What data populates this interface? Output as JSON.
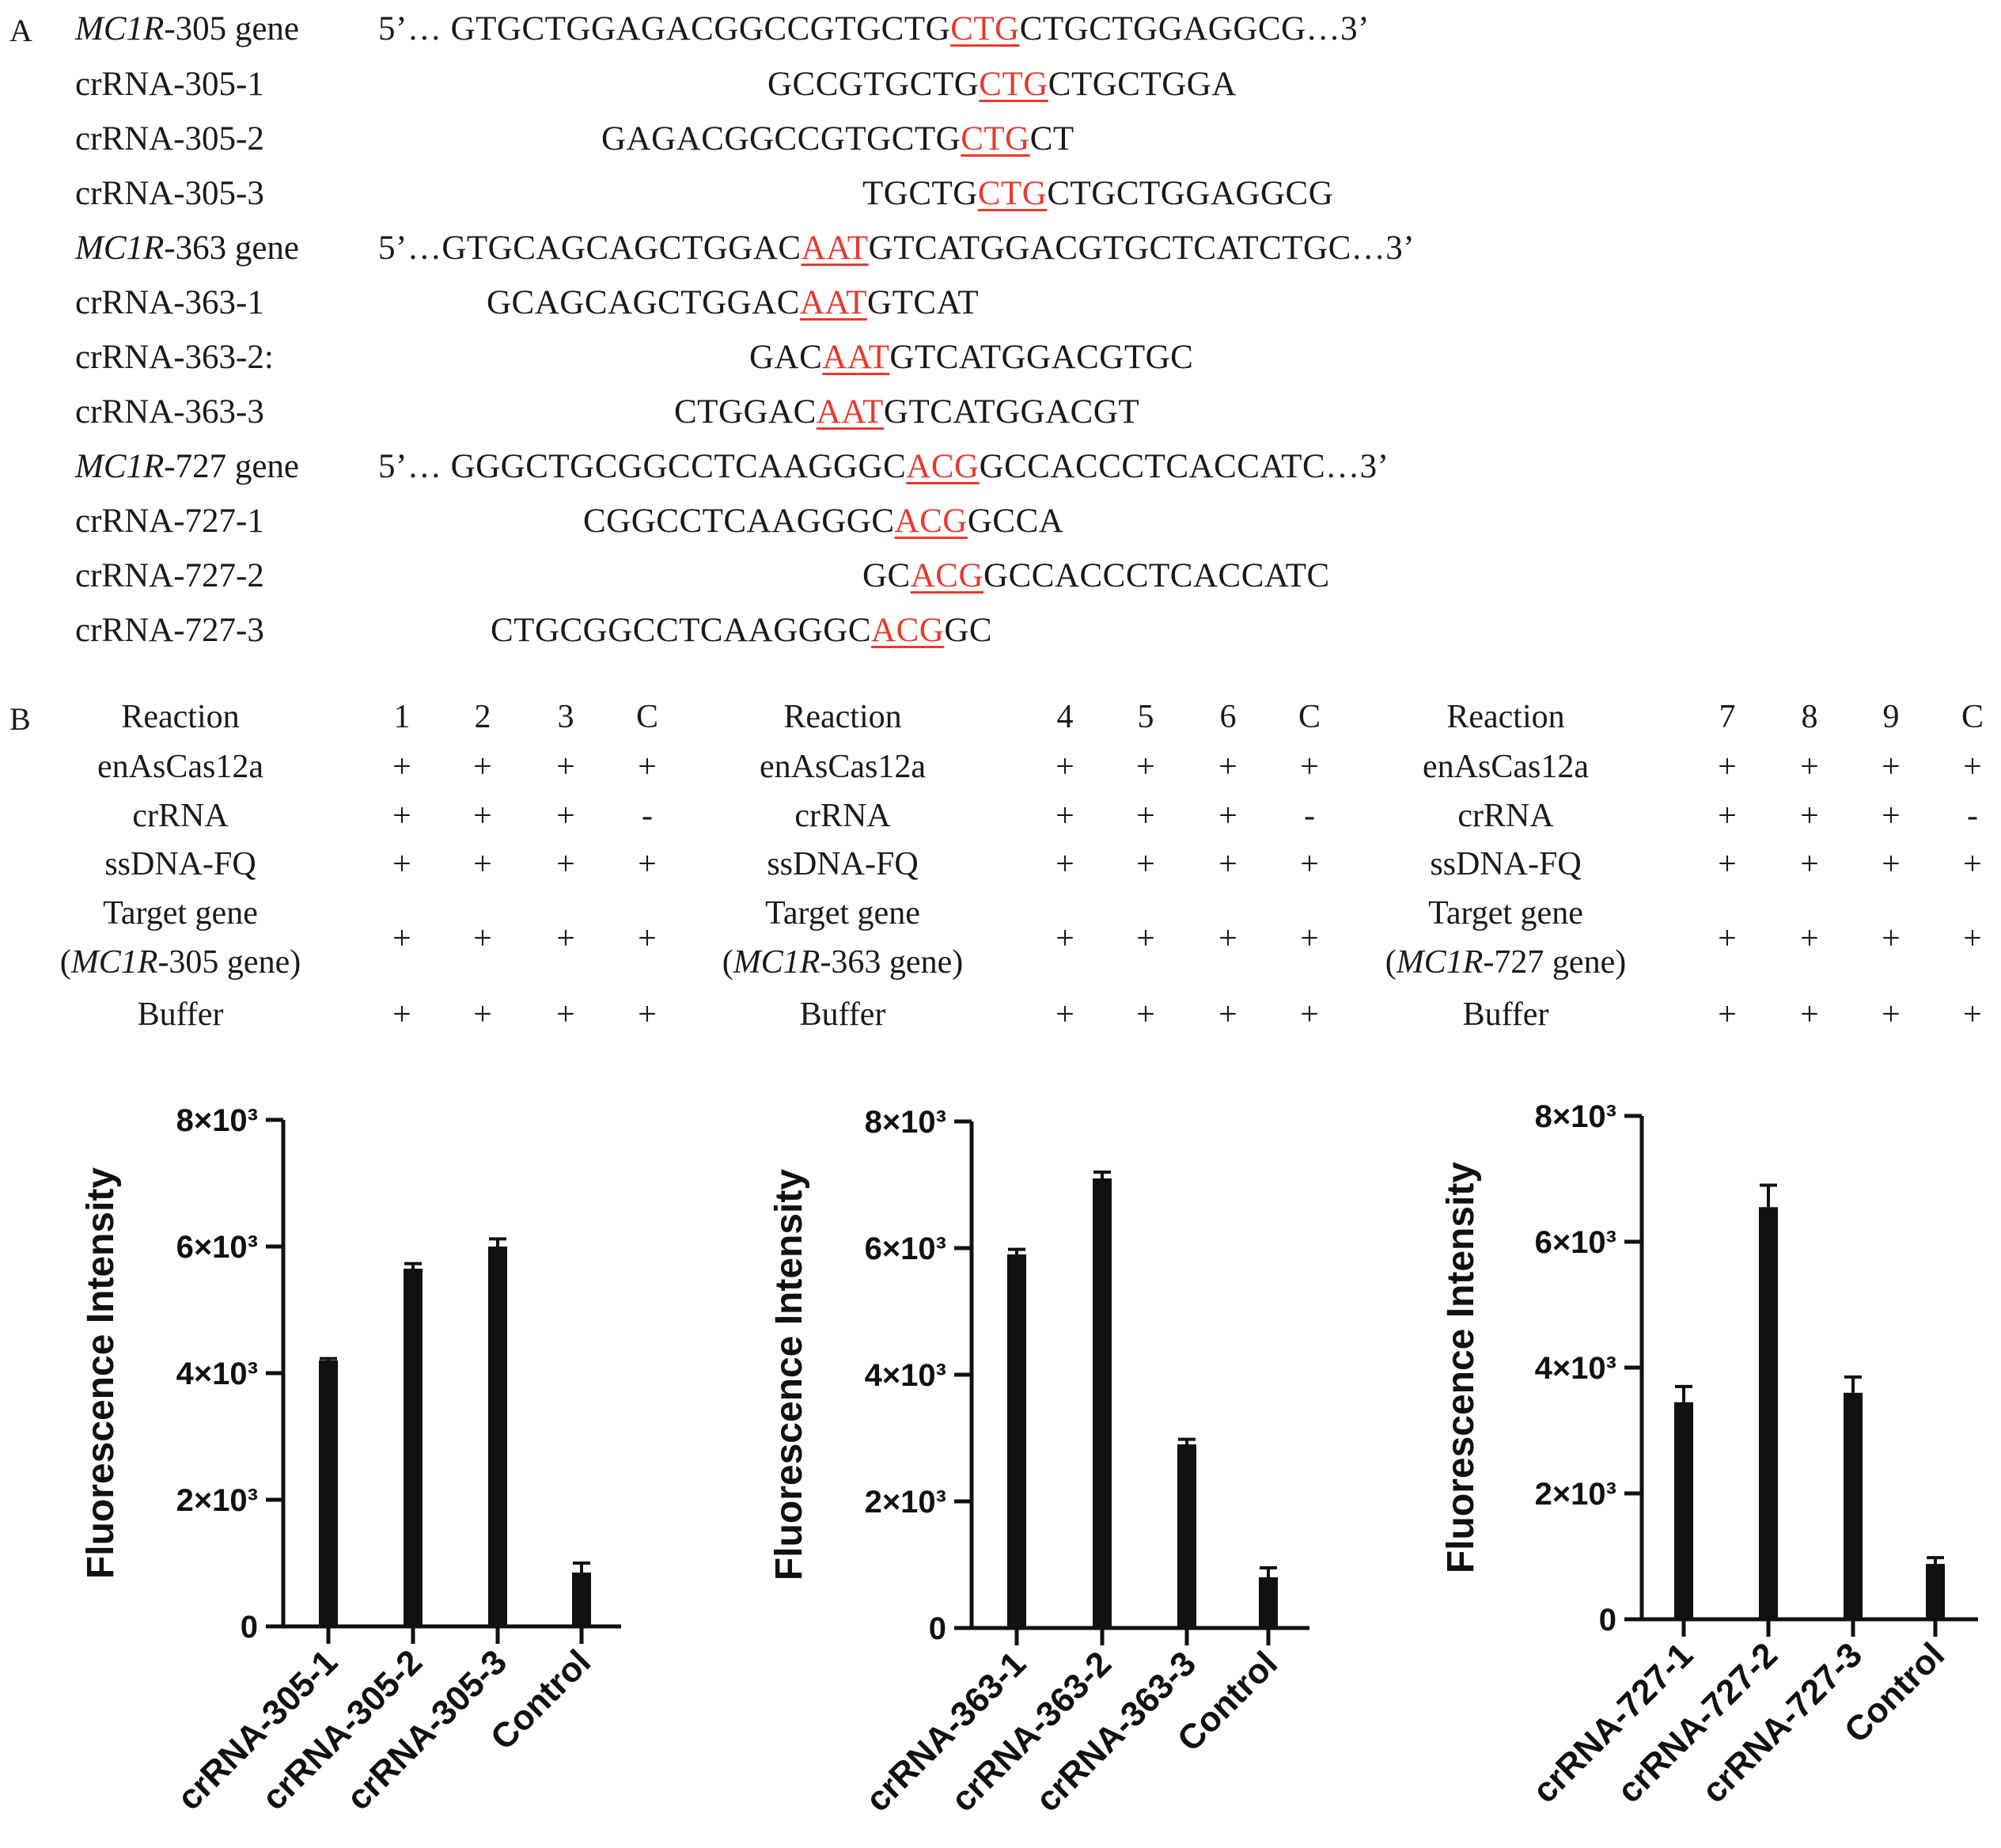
{
  "panel_a": {
    "letter": "A",
    "rows": [
      {
        "label_italic": "MC1R",
        "label_rest": "-305 gene",
        "prefix": "5’… GTGCTGGAGACGGCCGTGCTG",
        "highlight": "CTG",
        "suffix": "CTGCTGGAGGCG…3’"
      },
      {
        "label_italic": "",
        "label_rest": "crRNA-305-1",
        "prefix": "GCCGTGCTG",
        "highlight": "CTG",
        "suffix": "CTGCTGGA"
      },
      {
        "label_italic": "",
        "label_rest": "crRNA-305-2",
        "prefix": "GAGACGGCCGTGCTG",
        "highlight": "CTG",
        "suffix": "CT"
      },
      {
        "label_italic": "",
        "label_rest": "crRNA-305-3",
        "prefix": "TGCTG",
        "highlight": "CTG",
        "suffix": "CTGCTGGAGGCG"
      },
      {
        "label_italic": "MC1R",
        "label_rest": "-363 gene",
        "prefix": "5’…GTGCAGCAGCTGGAC",
        "highlight": "AAT",
        "suffix": "GTCATGGACGTGCTCATCTGC…3’"
      },
      {
        "label_italic": "",
        "label_rest": "crRNA-363-1",
        "prefix": "GCAGCAGCTGGAC",
        "highlight": "AAT",
        "suffix": "GTCAT"
      },
      {
        "label_italic": "",
        "label_rest": "crRNA-363-2:",
        "prefix": "GAC",
        "highlight": "AAT",
        "suffix": "GTCATGGACGTGC"
      },
      {
        "label_italic": "",
        "label_rest": "crRNA-363-3",
        "prefix": "CTGGAC",
        "highlight": "AAT",
        "suffix": "GTCATGGACGT"
      },
      {
        "label_italic": "MC1R",
        "label_rest": "-727 gene",
        "prefix": "5’… GGGCTGCGGCCTCAAGGGC",
        "highlight": "ACG",
        "suffix": "GCCACCCTCACCATC…3’"
      },
      {
        "label_italic": "",
        "label_rest": "crRNA-727-1",
        "prefix": "CGGCCTCAAGGGC",
        "highlight": "ACG",
        "suffix": "GCCA"
      },
      {
        "label_italic": "",
        "label_rest": "crRNA-727-2",
        "prefix": "GC",
        "highlight": "ACG",
        "suffix": "GCCACCCTCACCATC"
      },
      {
        "label_italic": "",
        "label_rest": "crRNA-727-3",
        "prefix": "CTGCGGCCTCAAGGGC",
        "highlight": "ACG",
        "suffix": "GC"
      }
    ]
  },
  "panel_b": {
    "letter": "B",
    "tables": [
      {
        "header_label": "Reaction",
        "columns": [
          "1",
          "2",
          "3",
          "C"
        ],
        "rows": [
          {
            "label": "enAsCas12a",
            "values": [
              "+",
              "+",
              "+",
              "+"
            ]
          },
          {
            "label": "crRNA",
            "values": [
              "+",
              "+",
              "+",
              "-"
            ]
          },
          {
            "label": "ssDNA-FQ",
            "values": [
              "+",
              "+",
              "+",
              "+"
            ]
          },
          {
            "label": "Target gene",
            "label2_open": "(",
            "label2_italic": "MC1R",
            "label2_rest": "-305 gene)",
            "values": [
              "+",
              "+",
              "+",
              "+"
            ]
          },
          {
            "label": "Buffer",
            "values": [
              "+",
              "+",
              "+",
              "+"
            ]
          }
        ]
      },
      {
        "header_label": "Reaction",
        "columns": [
          "4",
          "5",
          "6",
          "C"
        ],
        "rows": [
          {
            "label": "enAsCas12a",
            "values": [
              "+",
              "+",
              "+",
              "+"
            ]
          },
          {
            "label": "crRNA",
            "values": [
              "+",
              "+",
              "+",
              "-"
            ]
          },
          {
            "label": "ssDNA-FQ",
            "values": [
              "+",
              "+",
              "+",
              "+"
            ]
          },
          {
            "label": "Target gene",
            "label2_open": "(",
            "label2_italic": "MC1R",
            "label2_rest": "-363 gene)",
            "values": [
              "+",
              "+",
              "+",
              "+"
            ]
          },
          {
            "label": "Buffer",
            "values": [
              "+",
              "+",
              "+",
              "+"
            ]
          }
        ]
      },
      {
        "header_label": "Reaction",
        "columns": [
          "7",
          "8",
          "9",
          "C"
        ],
        "rows": [
          {
            "label": "enAsCas12a",
            "values": [
              "+",
              "+",
              "+",
              "+"
            ]
          },
          {
            "label": "crRNA",
            "values": [
              "+",
              "+",
              "+",
              "-"
            ]
          },
          {
            "label": "ssDNA-FQ",
            "values": [
              "+",
              "+",
              "+",
              "+"
            ]
          },
          {
            "label": "Target gene",
            "label2_open": "(",
            "label2_italic": "MC1R",
            "label2_rest": "-727 gene)",
            "values": [
              "+",
              "+",
              "+",
              "+"
            ]
          },
          {
            "label": "Buffer",
            "values": [
              "+",
              "+",
              "+",
              "+"
            ]
          }
        ]
      }
    ]
  },
  "chart_data": [
    {
      "type": "bar",
      "title": "",
      "ylabel": "Fluorescence Intensity",
      "xlabel": "",
      "ylim": [
        0,
        8000
      ],
      "yticks": [
        0,
        2000,
        4000,
        6000,
        8000
      ],
      "ytick_labels": [
        "0",
        "2×10³",
        "4×10³",
        "6×10³",
        "8×10³"
      ],
      "categories": [
        "crRNA-305-1",
        "crRNA-305-2",
        "crRNA-305-3",
        "Control"
      ],
      "values": [
        4200,
        5650,
        6000,
        850
      ],
      "errors": [
        30,
        80,
        120,
        150
      ]
    },
    {
      "type": "bar",
      "title": "",
      "ylabel": "Fluorescence Intensity",
      "xlabel": "",
      "ylim": [
        0,
        8000
      ],
      "yticks": [
        0,
        2000,
        4000,
        6000,
        8000
      ],
      "ytick_labels": [
        "0",
        "2×10³",
        "4×10³",
        "6×10³",
        "8×10³"
      ],
      "categories": [
        "crRNA-363-1",
        "crRNA-363-2",
        "crRNA-363-3",
        "Control"
      ],
      "values": [
        5900,
        7100,
        2900,
        800
      ],
      "errors": [
        80,
        100,
        80,
        150
      ]
    },
    {
      "type": "bar",
      "title": "",
      "ylabel": "Fluorescence Intensity",
      "xlabel": "",
      "ylim": [
        0,
        8000
      ],
      "yticks": [
        0,
        2000,
        4000,
        6000,
        8000
      ],
      "ytick_labels": [
        "0",
        "2×10³",
        "4×10³",
        "6×10³",
        "8×10³"
      ],
      "categories": [
        "crRNA-727-1",
        "crRNA-727-2",
        "crRNA-727-3",
        "Control"
      ],
      "values": [
        3450,
        6550,
        3600,
        880
      ],
      "errors": [
        250,
        350,
        250,
        100
      ]
    }
  ]
}
